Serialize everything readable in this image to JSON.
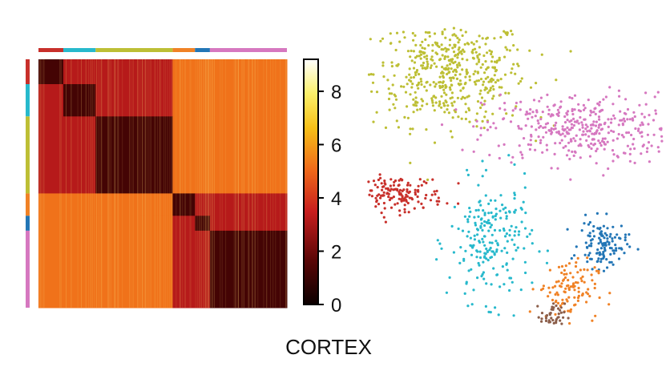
{
  "caption": "CORTEX",
  "chart_data": [
    {
      "type": "heatmap",
      "title": "",
      "description_of_blocks": "cell-by-cell distance matrix ordered by cluster",
      "clusters": [
        {
          "color": "#c8302b",
          "fraction": 0.1
        },
        {
          "color": "#27b9cc",
          "fraction": 0.13
        },
        {
          "color": "#bdbf35",
          "fraction": 0.31
        },
        {
          "color": "#f08226",
          "fraction": 0.09
        },
        {
          "color": "#2376b6",
          "fraction": 0.06
        },
        {
          "color": "#d678c0",
          "fraction": 0.31
        }
      ],
      "within_cluster_value": 1.2,
      "between_related_value": 3.2,
      "between_unrelated_value": 5.2,
      "colorbar": {
        "ticks": [
          "0",
          "2",
          "4",
          "6",
          "8"
        ],
        "range": [
          0,
          9.2
        ],
        "colormap": "hot"
      }
    },
    {
      "type": "scatter",
      "title": "",
      "xlabel": "",
      "ylabel": "",
      "clusters": [
        {
          "color": "#bdbf35",
          "cx": 0.28,
          "cy": 0.85,
          "sx": 0.13,
          "sy": 0.09,
          "n": 520
        },
        {
          "color": "#d678c0",
          "cx": 0.72,
          "cy": 0.66,
          "sx": 0.16,
          "sy": 0.06,
          "n": 380
        },
        {
          "color": "#c8302b",
          "cx": 0.1,
          "cy": 0.44,
          "sx": 0.08,
          "sy": 0.03,
          "n": 160
        },
        {
          "color": "#27b9cc",
          "cx": 0.42,
          "cy": 0.28,
          "sx": 0.07,
          "sy": 0.1,
          "n": 220
        },
        {
          "color": "#2376b6",
          "cx": 0.8,
          "cy": 0.27,
          "sx": 0.04,
          "sy": 0.04,
          "n": 120
        },
        {
          "color": "#f08226",
          "cx": 0.68,
          "cy": 0.12,
          "sx": 0.05,
          "sy": 0.05,
          "n": 110
        },
        {
          "color": "#8b5e4a",
          "cx": 0.63,
          "cy": 0.03,
          "sx": 0.02,
          "sy": 0.02,
          "n": 40
        }
      ]
    }
  ]
}
